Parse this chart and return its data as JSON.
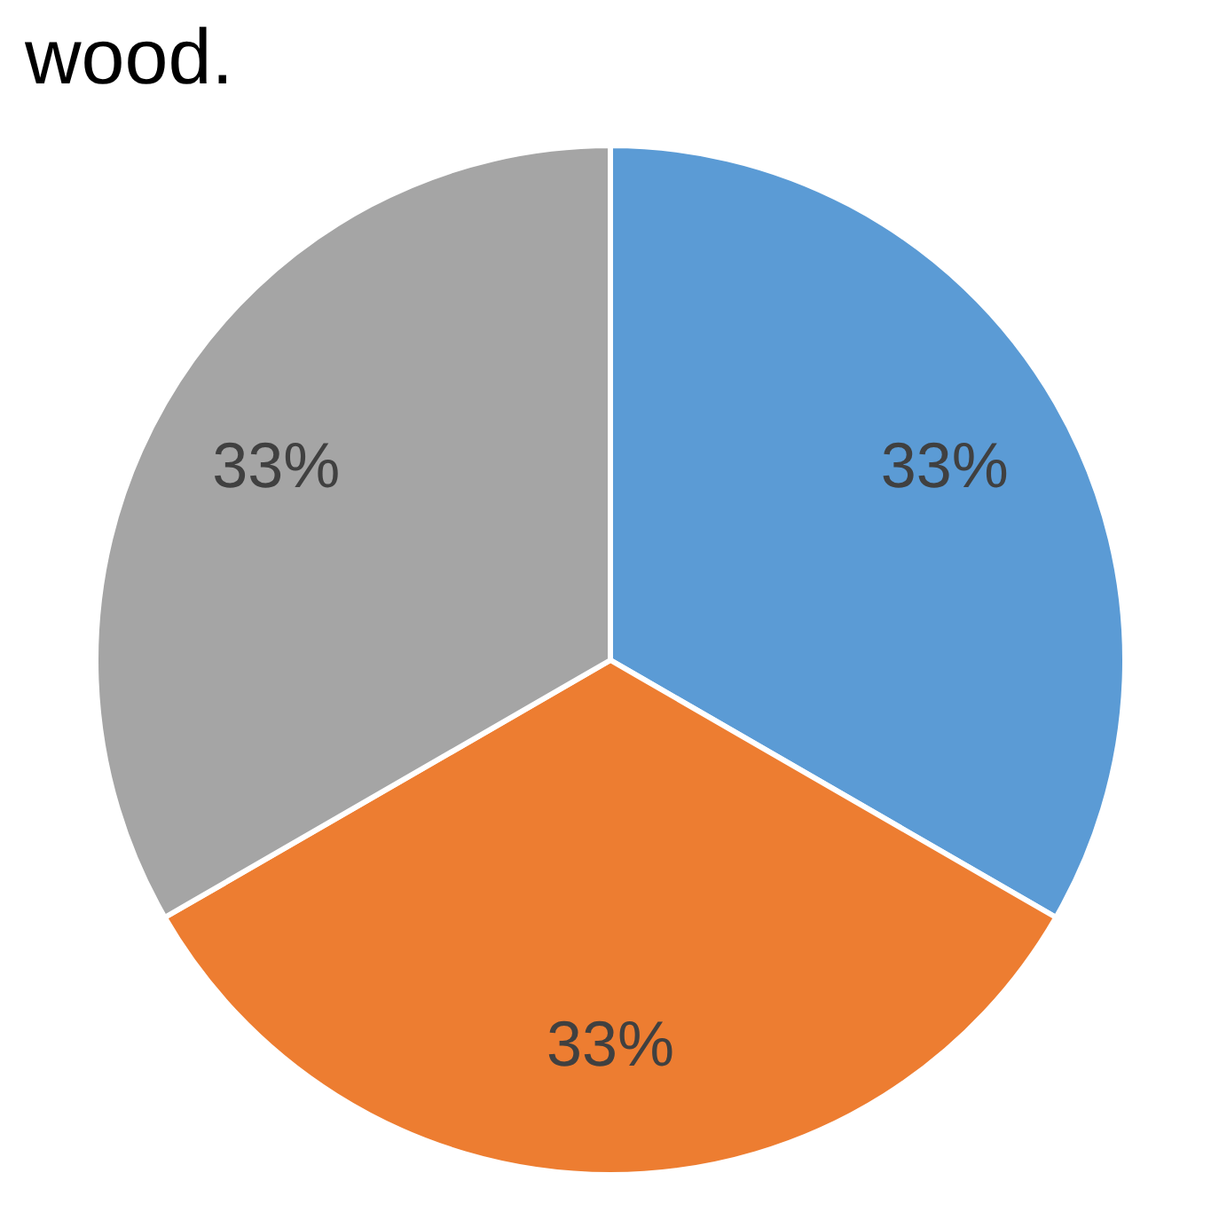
{
  "chart_data": {
    "type": "pie",
    "title": "wood.",
    "categories": [
      null,
      null,
      null
    ],
    "values": [
      33,
      33,
      33
    ],
    "colors": [
      "#5b9bd5",
      "#ed7d31",
      "#a5a5a5"
    ],
    "value_labels": [
      "33%",
      "33%",
      "33%"
    ],
    "legend": false
  }
}
